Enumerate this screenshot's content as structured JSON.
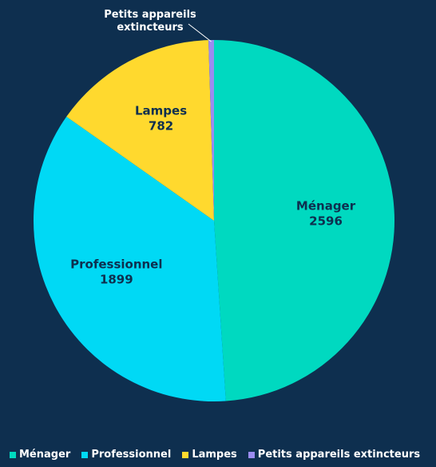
{
  "chart_data": {
    "type": "pie",
    "categories": [
      "Ménager",
      "Professionnel",
      "Lampes",
      "Petits appareils extincteurs"
    ],
    "values": [
      2596,
      1899,
      782,
      26
    ],
    "data_labels": [
      "Ménager\n2596",
      "Professionnel\n1899",
      "Lampes\n782",
      "Petits appareils\nextincteurs"
    ],
    "colors": [
      "#00d9c0",
      "#00d9f5",
      "#ffd92e",
      "#9b8cf0"
    ],
    "legend_position": "bottom"
  },
  "background": "#0e2f4f"
}
